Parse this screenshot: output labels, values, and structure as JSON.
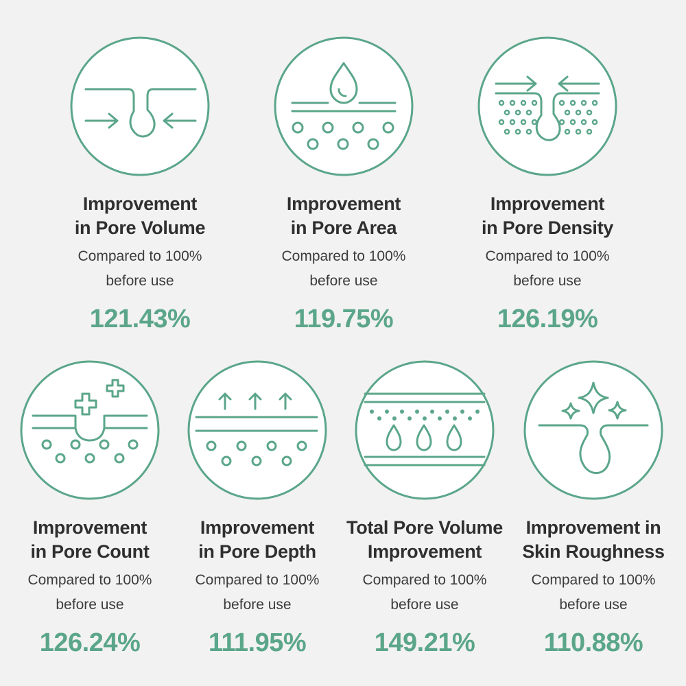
{
  "colors": {
    "accent": "#5ba68a",
    "background": "#f2f2f2",
    "text": "#2f2f2f"
  },
  "metrics": [
    {
      "title_line1": "Improvement",
      "title_line2": "in Pore Volume",
      "sub_line1": "Compared to 100%",
      "sub_line2": "before use",
      "value": "121.43%",
      "icon": "pore-volume-icon"
    },
    {
      "title_line1": "Improvement",
      "title_line2": "in Pore Area",
      "sub_line1": "Compared to 100%",
      "sub_line2": "before use",
      "value": "119.75%",
      "icon": "pore-area-icon"
    },
    {
      "title_line1": "Improvement",
      "title_line2": "in Pore Density",
      "sub_line1": "Compared to 100%",
      "sub_line2": "before use",
      "value": "126.19%",
      "icon": "pore-density-icon"
    },
    {
      "title_line1": "Improvement",
      "title_line2": "in Pore Count",
      "sub_line1": "Compared to 100%",
      "sub_line2": "before use",
      "value": "126.24%",
      "icon": "pore-count-icon"
    },
    {
      "title_line1": "Improvement",
      "title_line2": "in Pore Depth",
      "sub_line1": "Compared to 100%",
      "sub_line2": "before use",
      "value": "111.95%",
      "icon": "pore-depth-icon"
    },
    {
      "title_line1": "Total Pore Volume",
      "title_line2": "Improvement",
      "sub_line1": "Compared to 100%",
      "sub_line2": "before use",
      "value": "149.21%",
      "icon": "total-pore-volume-icon"
    },
    {
      "title_line1": "Improvement in",
      "title_line2": "Skin Roughness",
      "sub_line1": "Compared to 100%",
      "sub_line2": "before use",
      "value": "110.88%",
      "icon": "skin-roughness-icon"
    }
  ]
}
